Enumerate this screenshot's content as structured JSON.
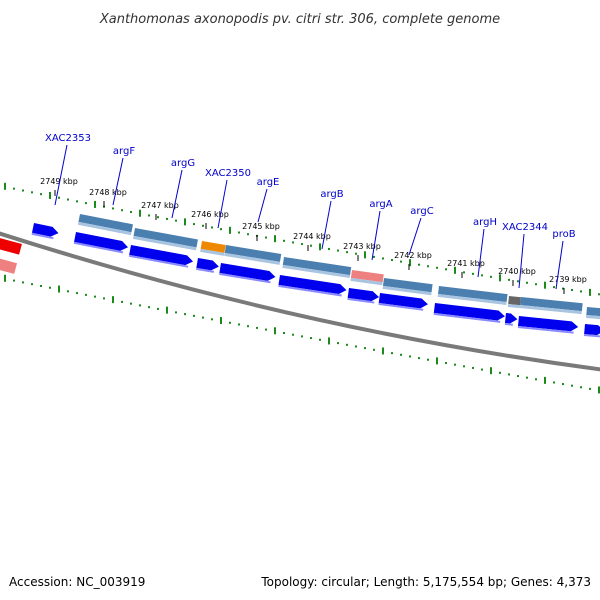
{
  "title": "Xanthomonas axonopodis pv. citri str. 306, complete genome",
  "footer": {
    "accession": "Accession: NC_003919",
    "summary": "Topology: circular; Length: 5,175,554 bp; Genes: 4,373"
  },
  "colors": {
    "backbone": "#777777",
    "cds": "#0000ee",
    "gene_bar": "#4a7fb0",
    "gc_tick": "#1a8a1a",
    "label": "#0000cc",
    "red_feature": "#ee0000",
    "pink_feature": "#ee8080",
    "orange_feature": "#ee8800",
    "grey_feature": "#666666"
  },
  "tick_labels": [
    "2749 kbp",
    "2748 kbp",
    "2747 kbp",
    "2746 kbp",
    "2745 kbp",
    "2744 kbp",
    "2743 kbp",
    "2742 kbp",
    "2741 kbp",
    "2740 kbp",
    "2739 kbp"
  ],
  "gene_labels": [
    "XAC2353",
    "argF",
    "argG",
    "XAC2350",
    "argE",
    "argB",
    "argA",
    "argC",
    "argH",
    "XAC2344",
    "proB"
  ]
}
